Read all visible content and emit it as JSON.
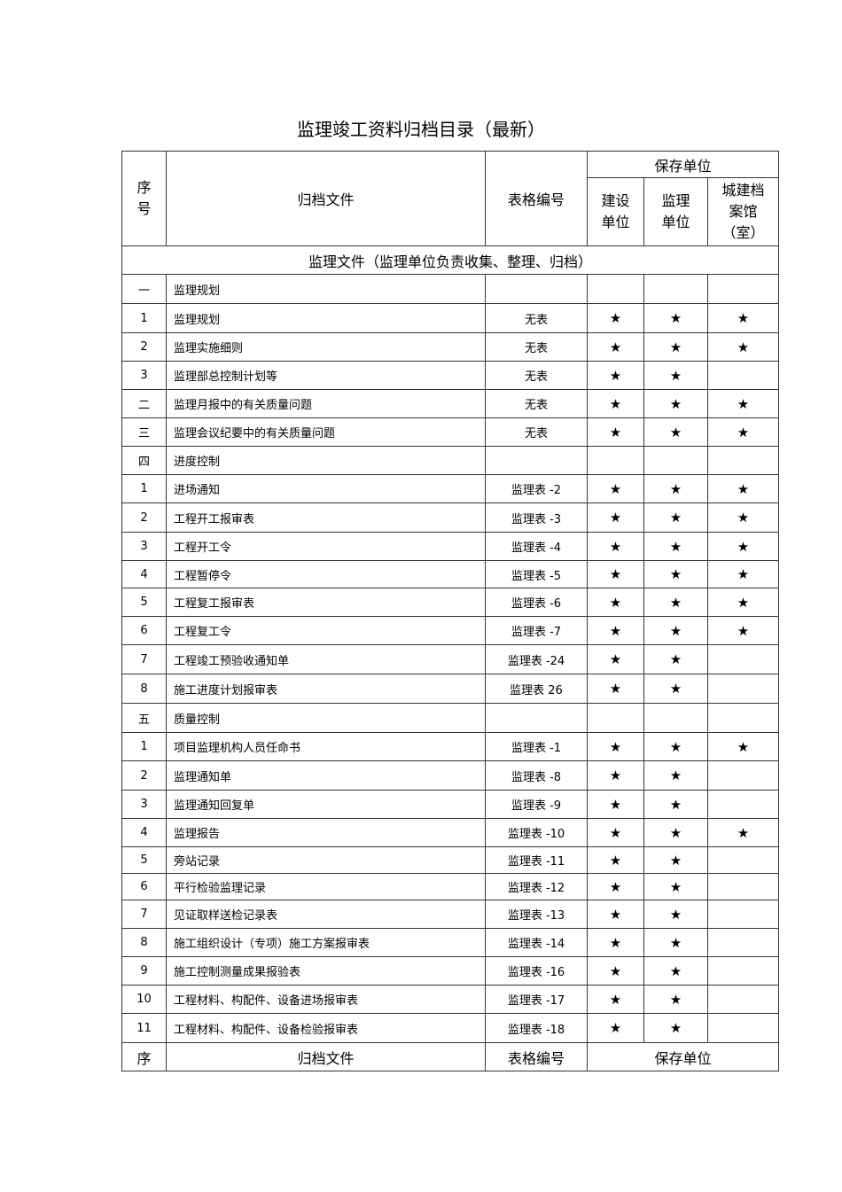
{
  "title": "监理竣工资料归档目录（最新）",
  "header": {
    "seq": "序号",
    "file": "归档文件",
    "form_no": "表格编号",
    "keep_unit": "保存单位",
    "unit_build": "建设单位",
    "unit_supervise": "监理单位",
    "unit_archive": "城建档案馆（室）"
  },
  "section": "监理文件（监理单位负责收集、整理、归档）",
  "star_symbol": "★",
  "rows": [
    {
      "seq": "一",
      "name": "监理规划",
      "form": "",
      "stars": [
        false,
        false,
        false
      ]
    },
    {
      "seq": "1",
      "name": "监理规划",
      "form": "无表",
      "stars": [
        true,
        true,
        true
      ]
    },
    {
      "seq": "2",
      "name": "监理实施细则",
      "form": "无表",
      "stars": [
        true,
        true,
        true
      ]
    },
    {
      "seq": "3",
      "name": "监理部总控制计划等",
      "form": "无表",
      "stars": [
        true,
        true,
        false
      ]
    },
    {
      "seq": "二",
      "name": "监理月报中的有关质量问题",
      "form": "无表",
      "stars": [
        true,
        true,
        true
      ]
    },
    {
      "seq": "三",
      "name": "监理会议纪要中的有关质量问题",
      "form": "无表",
      "stars": [
        true,
        true,
        true
      ]
    },
    {
      "seq": "四",
      "name": "进度控制",
      "form": "",
      "stars": [
        false,
        false,
        false
      ]
    },
    {
      "seq": "1",
      "name": "进场通知",
      "form": "监理表 -2",
      "stars": [
        true,
        true,
        true
      ]
    },
    {
      "seq": "2",
      "name": "工程开工报审表",
      "form": "监理表 -3",
      "stars": [
        true,
        true,
        true
      ]
    },
    {
      "seq": "3",
      "name": "工程开工令",
      "form": "监理表 -4",
      "stars": [
        true,
        true,
        true
      ]
    },
    {
      "seq": "4",
      "name": "工程暂停令",
      "form": "监理表 -5",
      "stars": [
        true,
        true,
        true
      ]
    },
    {
      "seq": "5",
      "name": "工程复工报审表",
      "form": "监理表 -6",
      "stars": [
        true,
        true,
        true
      ]
    },
    {
      "seq": "6",
      "name": "工程复工令",
      "form": "监理表 -7",
      "stars": [
        true,
        true,
        true
      ]
    },
    {
      "seq": "7",
      "name": "工程竣工预验收通知单",
      "form": "监理表 -24",
      "stars": [
        true,
        true,
        false
      ]
    },
    {
      "seq": "8",
      "name": "施工进度计划报审表",
      "form": "监理表  26",
      "stars": [
        true,
        true,
        false
      ]
    },
    {
      "seq": "五",
      "name": "质量控制",
      "form": "",
      "stars": [
        false,
        false,
        false
      ]
    },
    {
      "seq": "1",
      "name": "项目监理机构人员任命书",
      "form": "监理表 -1",
      "stars": [
        true,
        true,
        true
      ]
    },
    {
      "seq": "2",
      "name": "监理通知单",
      "form": "监理表 -8",
      "stars": [
        true,
        true,
        false
      ]
    },
    {
      "seq": "3",
      "name": "监理通知回复单",
      "form": "监理表 -9",
      "stars": [
        true,
        true,
        false
      ]
    },
    {
      "seq": "4",
      "name": "监理报告",
      "form": "监理表 -10",
      "stars": [
        true,
        true,
        true
      ]
    },
    {
      "seq": "5",
      "name": "旁站记录",
      "form": "监理表 -11",
      "stars": [
        true,
        true,
        false
      ]
    },
    {
      "seq": "6",
      "name": "平行检验监理记录",
      "form": "监理表 -12",
      "stars": [
        true,
        true,
        false
      ]
    },
    {
      "seq": "7",
      "name": "见证取样送检记录表",
      "form": "监理表 -13",
      "stars": [
        true,
        true,
        false
      ]
    },
    {
      "seq": "8",
      "name": "施工组织设计（专项）施工方案报审表",
      "form": "监理表 -14",
      "stars": [
        true,
        true,
        false
      ]
    },
    {
      "seq": "9",
      "name": "施工控制测量成果报验表",
      "form": "监理表 -16",
      "stars": [
        true,
        true,
        false
      ]
    },
    {
      "seq": "10",
      "name": "工程材料、构配件、设备进场报审表",
      "form": "监理表 -17",
      "stars": [
        true,
        true,
        false
      ]
    },
    {
      "seq": "11",
      "name": "工程材料、构配件、设备检验报审表",
      "form": "监理表 -18",
      "stars": [
        true,
        true,
        false
      ]
    }
  ],
  "footer": {
    "seq": "序",
    "file": "归档文件",
    "form_no": "表格编号",
    "keep_unit": "保存单位"
  }
}
